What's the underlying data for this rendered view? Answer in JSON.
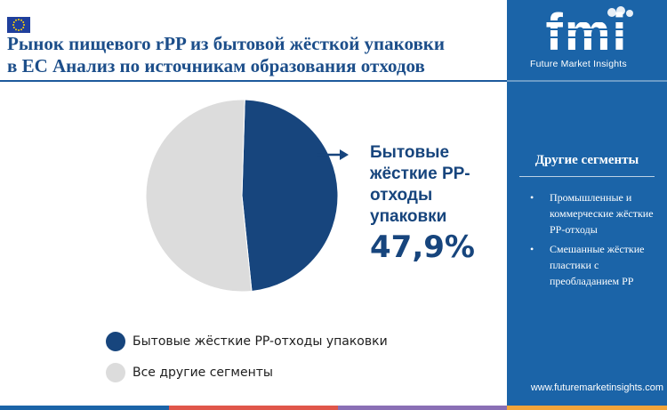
{
  "header": {
    "title_line1": "Рынок пищевого rPP из бытовой жёсткой упаковки",
    "title_line2": "в ЕС Анализ по источникам образования отходов",
    "flag_icon": "eu-flag-icon"
  },
  "chart_data": {
    "type": "pie",
    "title": "Рынок пищевого rPP из бытовой жёсткой упаковки в ЕС Анализ по источникам образования отходов",
    "slices": [
      {
        "label": "Бытовые жёсткие PP-отходы упаковки",
        "value": 47.9,
        "color": "#17457d"
      },
      {
        "label": "Все другие сегменты",
        "value": 52.1,
        "color": "#dcdcdc"
      }
    ],
    "legend_position": "bottom"
  },
  "callout": {
    "label": "Бытовые жёсткие PP-отходы упаковки",
    "value": "47,9%"
  },
  "legend": [
    {
      "label": "Бытовые жёсткие PP-отходы упаковки",
      "color": "#17457d"
    },
    {
      "label": "Все другие сегменты",
      "color": "#dcdcdc"
    }
  ],
  "sidebar": {
    "logo_text": "fmi",
    "brand_name": "Future Market Insights",
    "segments_title": "Другие сегменты",
    "segments": [
      "Промышленные и коммерческие жёсткие PP-отходы",
      "Смешанные жёсткие пластики с преобладанием PP"
    ],
    "bullet": "•",
    "website": "www.futuremarketinsights.com"
  },
  "colors": {
    "primary": "#17457d",
    "sidebar_bg": "#1b64a8",
    "other_segment": "#dcdcdc",
    "bottom_bar": [
      "#1b64a8",
      "#e0564a",
      "#8a6fb5",
      "#f2a43a"
    ]
  }
}
